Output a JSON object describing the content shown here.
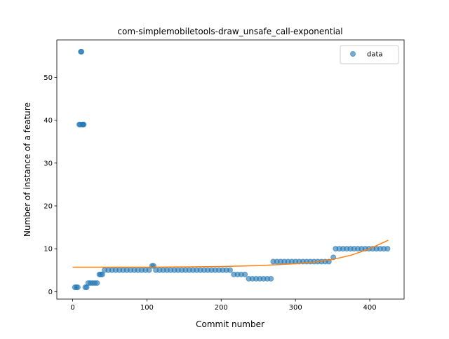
{
  "chart_data": {
    "type": "scatter",
    "title": "com-simplemobiletools-draw_unsafe_call-exponential",
    "x_label": "Commit number",
    "y_label": "Number of instance of a feature",
    "xlim": [
      -21.25,
      446.25
    ],
    "ylim": [
      -1.75,
      58.75
    ],
    "xticks": [
      0,
      100,
      200,
      300,
      400
    ],
    "yticks": [
      0,
      10,
      20,
      30,
      40,
      50
    ],
    "legend": "upper right",
    "series": [
      {
        "name": "data",
        "color": "#1f77b4",
        "x": [
          3,
          5,
          7,
          9,
          10,
          11,
          12,
          13,
          14,
          15,
          17,
          19,
          21,
          24,
          27,
          30,
          33,
          36,
          38,
          40,
          43,
          48,
          53,
          58,
          63,
          68,
          73,
          78,
          83,
          88,
          93,
          98,
          103,
          107,
          109,
          112,
          117,
          122,
          127,
          132,
          137,
          142,
          147,
          152,
          157,
          162,
          167,
          172,
          177,
          182,
          187,
          192,
          197,
          202,
          207,
          212,
          217,
          222,
          227,
          232,
          237,
          242,
          247,
          252,
          257,
          262,
          267,
          270,
          275,
          280,
          285,
          290,
          295,
          300,
          305,
          310,
          315,
          320,
          325,
          330,
          335,
          340,
          345,
          351,
          354,
          359,
          364,
          369,
          374,
          379,
          384,
          389,
          394,
          399,
          404,
          409,
          414,
          419,
          424
        ],
        "values": [
          1,
          1,
          1,
          39,
          39,
          56,
          56,
          39,
          39,
          39,
          1,
          1,
          2,
          2,
          2,
          2,
          2,
          4,
          4,
          4,
          5,
          5,
          5,
          5,
          5,
          5,
          5,
          5,
          5,
          5,
          5,
          5,
          5,
          6,
          6,
          5,
          5,
          5,
          5,
          5,
          5,
          5,
          5,
          5,
          5,
          5,
          5,
          5,
          5,
          5,
          5,
          5,
          5,
          5,
          5,
          5,
          4,
          4,
          4,
          4,
          3,
          3,
          3,
          3,
          3,
          3,
          3,
          7,
          7,
          7,
          7,
          7,
          7,
          7,
          7,
          7,
          7,
          7,
          7,
          7,
          7,
          7,
          7,
          8,
          10,
          10,
          10,
          10,
          10,
          10,
          10,
          10,
          10,
          10,
          10,
          10,
          10,
          10,
          10
        ]
      }
    ],
    "fit_line": {
      "color": "#ff7f0e",
      "x": [
        0,
        50,
        100,
        150,
        200,
        250,
        300,
        325,
        350,
        375,
        400,
        425
      ],
      "values": [
        5.7,
        5.7,
        5.7,
        5.75,
        5.85,
        6.05,
        6.5,
        6.9,
        7.5,
        8.5,
        10.0,
        12.0
      ]
    }
  }
}
